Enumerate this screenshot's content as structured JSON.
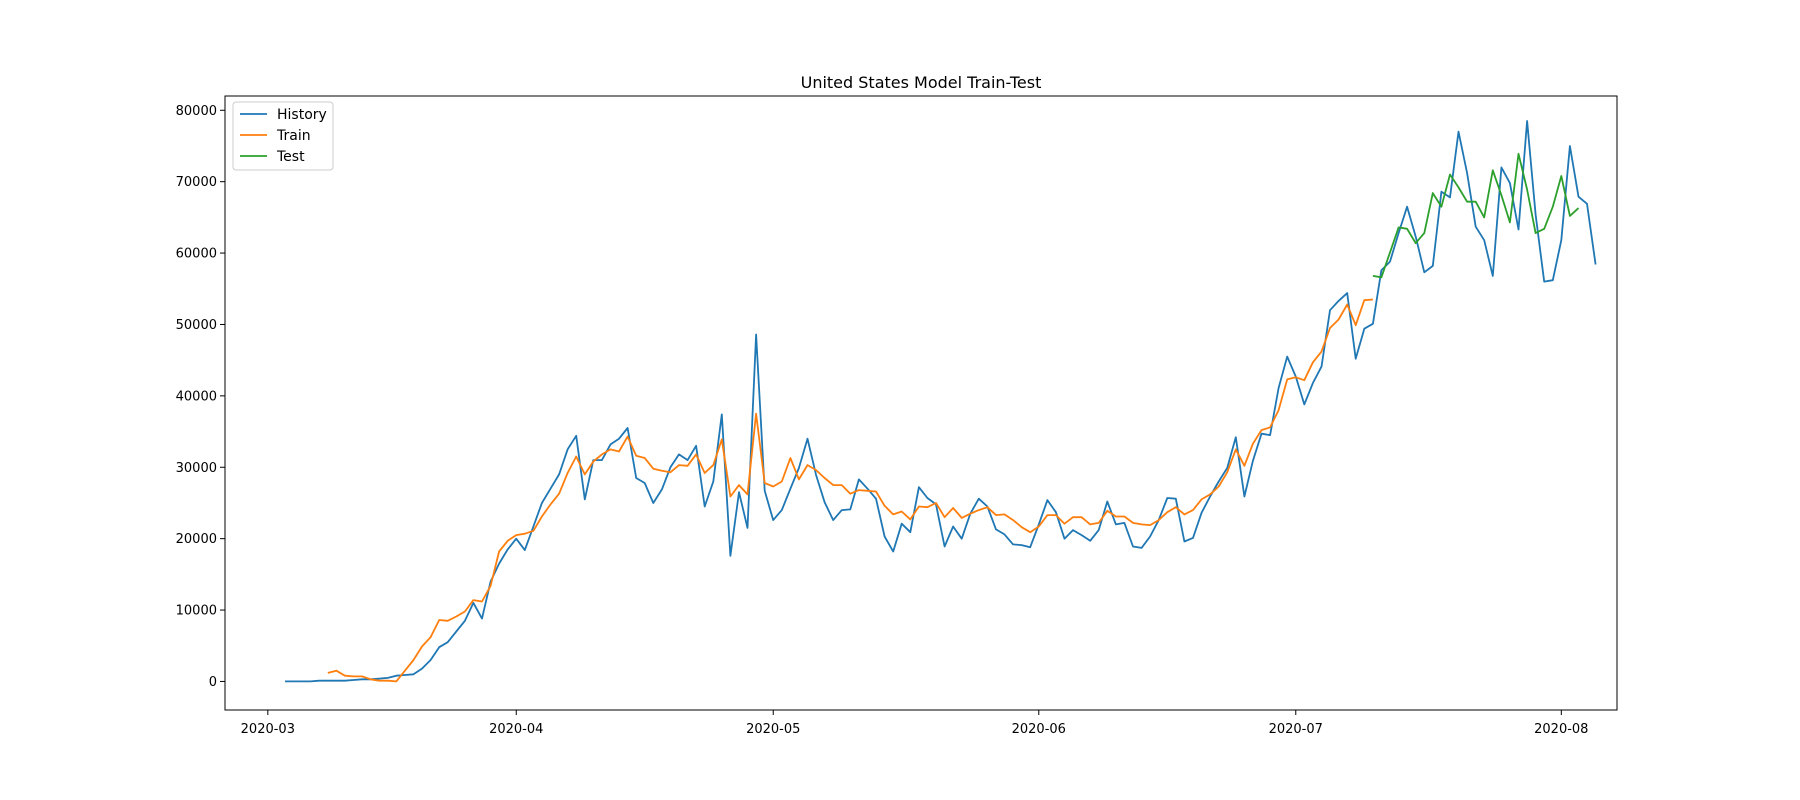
{
  "chart_data": {
    "type": "line",
    "title": "United States Model Train-Test",
    "xlabel": "",
    "ylabel": "",
    "x_start_date": "2020-03-03",
    "xlim_days": [
      -5,
      157.5
    ],
    "ylim": [
      -4000,
      82000
    ],
    "x_ticks": [
      {
        "day": 0,
        "label": "2020-03"
      },
      {
        "day": 29,
        "label": "2020-04"
      },
      {
        "day": 59,
        "label": "2020-05"
      },
      {
        "day": 90,
        "label": "2020-06"
      },
      {
        "day": 120,
        "label": "2020-07"
      },
      {
        "day": 151,
        "label": "2020-08"
      }
    ],
    "y_ticks": [
      {
        "value": 0,
        "label": "0"
      },
      {
        "value": 10000,
        "label": "10000"
      },
      {
        "value": 20000,
        "label": "20000"
      },
      {
        "value": 30000,
        "label": "30000"
      },
      {
        "value": 40000,
        "label": "40000"
      },
      {
        "value": 50000,
        "label": "50000"
      },
      {
        "value": 60000,
        "label": "60000"
      },
      {
        "value": 70000,
        "label": "70000"
      },
      {
        "value": 80000,
        "label": "80000"
      }
    ],
    "legend_position": "top-left",
    "series": [
      {
        "name": "History",
        "color": "#1f77b4",
        "start_day": 2,
        "values": [
          0,
          0,
          0,
          0,
          100,
          100,
          100,
          100,
          200,
          300,
          300,
          400,
          500,
          800,
          900,
          1000,
          1800,
          3000,
          4800,
          5500,
          7000,
          8500,
          11000,
          8800,
          14000,
          16500,
          18500,
          20000,
          18400,
          21700,
          25000,
          27000,
          29000,
          32500,
          34400,
          25500,
          31000,
          31000,
          33200,
          34000,
          35500,
          28500,
          27800,
          25000,
          26900,
          30000,
          31800,
          31000,
          33000,
          24500,
          28000,
          37400,
          17600,
          26500,
          21500,
          48600,
          26700,
          22600,
          24000,
          27000,
          29900,
          34000,
          28900,
          25100,
          22600,
          24000,
          24100,
          28300,
          27000,
          25600,
          20300,
          18200,
          22100,
          20900,
          27200,
          25700,
          24800,
          18900,
          21700,
          20000,
          23500,
          25600,
          24500,
          21300,
          20600,
          19200,
          19100,
          18800,
          22000,
          25400,
          23700,
          20000,
          21200,
          20500,
          19700,
          21200,
          25200,
          22000,
          22200,
          18900,
          18700,
          20300,
          22600,
          25700,
          25600,
          19600,
          20100,
          23600,
          25900,
          28000,
          29900,
          34200,
          25900,
          30900,
          34700,
          34500,
          41100,
          45500,
          42700,
          38800,
          41800,
          44100,
          52000,
          53300,
          54400,
          45200,
          49400,
          50100,
          57600,
          58800,
          62800,
          66500,
          62300,
          57300,
          58200,
          68600,
          67800,
          77000,
          71200,
          63700,
          61800,
          56800,
          72000,
          69800,
          63300,
          78500,
          65400,
          56000,
          56200,
          61800,
          75000,
          67900,
          66900,
          58400
        ]
      },
      {
        "name": "Train",
        "color": "#ff7f0e",
        "start_day": 7,
        "values": [
          1200,
          1500,
          800,
          700,
          700,
          300,
          100,
          100,
          0,
          1500,
          3000,
          4900,
          6200,
          8600,
          8500,
          9100,
          9800,
          11400,
          11200,
          13400,
          18200,
          19700,
          20500,
          20700,
          21100,
          23100,
          24800,
          26300,
          29200,
          31500,
          29000,
          30800,
          31800,
          32500,
          32200,
          34300,
          31600,
          31300,
          29800,
          29500,
          29300,
          30300,
          30200,
          31800,
          29200,
          30300,
          33900,
          25900,
          27500,
          26200,
          37500,
          27800,
          27300,
          28000,
          31300,
          28300,
          30300,
          29600,
          28500,
          27500,
          27500,
          26300,
          26800,
          26700,
          26600,
          24600,
          23400,
          23800,
          22700,
          24500,
          24400,
          25000,
          23000,
          24300,
          22900,
          23500,
          24000,
          24400,
          23300,
          23400,
          22600,
          21600,
          20900,
          21700,
          23300,
          23300,
          22100,
          23000,
          23000,
          22000,
          22200,
          23900,
          23100,
          23100,
          22200,
          22000,
          21900,
          22600,
          23700,
          24400,
          23400,
          24000,
          25500,
          26200,
          27300,
          29300,
          32500,
          30200,
          33300,
          35200,
          35600,
          38000,
          42300,
          42600,
          42200,
          44700,
          46200,
          49500,
          50700,
          52800,
          49900,
          53400,
          53500
        ]
      },
      {
        "name": "Test",
        "color": "#2ca02c",
        "start_day": 129,
        "values": [
          56800,
          56600,
          60100,
          63600,
          63400,
          61400,
          62800,
          68400,
          66500,
          71000,
          69200,
          67200,
          67200,
          65000,
          71600,
          68100,
          64300,
          73900,
          68900,
          62800,
          63400,
          66500,
          70800,
          65200,
          66300
        ]
      }
    ]
  }
}
